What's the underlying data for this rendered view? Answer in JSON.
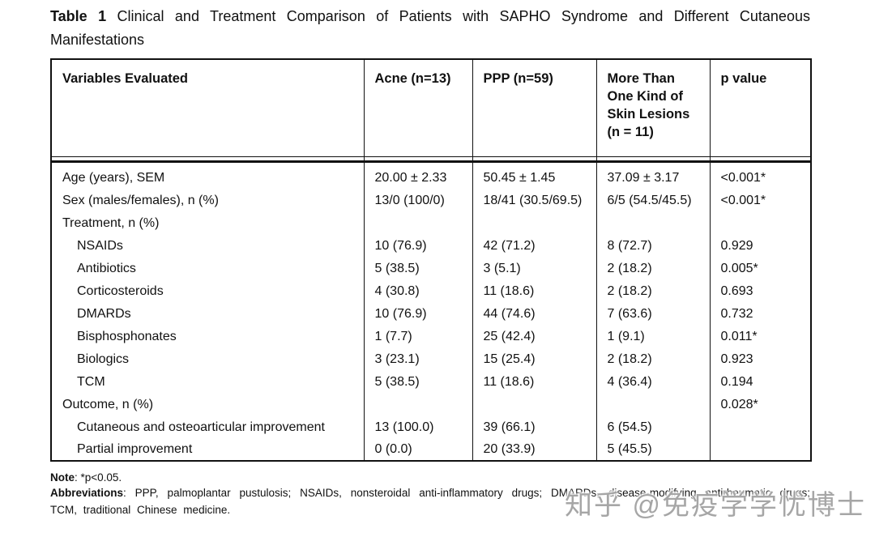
{
  "page": {
    "title_label": "Table 1",
    "title_text": "Clinical and Treatment Comparison of Patients with SAPHO Syndrome and Different Cutaneous Manifestations"
  },
  "table": {
    "columns": [
      "Variables Evaluated",
      "Acne (n=13)",
      "PPP (n=59)",
      "More Than One Kind of Skin Lesions (n = 11)",
      "p value"
    ],
    "rows": [
      {
        "label": "Age (years), SEM",
        "indent": false,
        "values": [
          "20.00 ± 2.33",
          "50.45 ± 1.45",
          "37.09 ± 3.17",
          "<0.001*"
        ]
      },
      {
        "label": "Sex (males/females), n (%)",
        "indent": false,
        "values": [
          "13/0 (100/0)",
          "18/41 (30.5/69.5)",
          "6/5 (54.5/45.5)",
          "<0.001*"
        ]
      },
      {
        "label": "Treatment, n (%)",
        "indent": false,
        "values": [
          "",
          "",
          "",
          ""
        ]
      },
      {
        "label": "NSAIDs",
        "indent": true,
        "values": [
          "10 (76.9)",
          "42 (71.2)",
          "8 (72.7)",
          "0.929"
        ]
      },
      {
        "label": "Antibiotics",
        "indent": true,
        "values": [
          "5 (38.5)",
          "3 (5.1)",
          "2 (18.2)",
          "0.005*"
        ]
      },
      {
        "label": "Corticosteroids",
        "indent": true,
        "values": [
          "4 (30.8)",
          "11 (18.6)",
          "2 (18.2)",
          "0.693"
        ]
      },
      {
        "label": "DMARDs",
        "indent": true,
        "values": [
          "10 (76.9)",
          "44 (74.6)",
          "7 (63.6)",
          "0.732"
        ]
      },
      {
        "label": "Bisphosphonates",
        "indent": true,
        "values": [
          "1 (7.7)",
          "25 (42.4)",
          "1 (9.1)",
          "0.011*"
        ]
      },
      {
        "label": "Biologics",
        "indent": true,
        "values": [
          "3 (23.1)",
          "15 (25.4)",
          "2 (18.2)",
          "0.923"
        ]
      },
      {
        "label": "TCM",
        "indent": true,
        "values": [
          "5 (38.5)",
          "11 (18.6)",
          "4 (36.4)",
          "0.194"
        ]
      },
      {
        "label": "Outcome, n (%)",
        "indent": false,
        "values": [
          "",
          "",
          "",
          "0.028*"
        ]
      },
      {
        "label": "Cutaneous and osteoarticular improvement",
        "indent": true,
        "values": [
          "13 (100.0)",
          "39 (66.1)",
          "6 (54.5)",
          ""
        ]
      },
      {
        "label": "Partial improvement",
        "indent": true,
        "values": [
          "0 (0.0)",
          "20 (33.9)",
          "5 (45.5)",
          ""
        ]
      }
    ]
  },
  "notes": {
    "note_label": "Note",
    "note_text": ": *p<0.05.",
    "abbr_label": "Abbreviations",
    "abbr_text": ": PPP, palmoplantar pustulosis; NSAIDs, nonsteroidal anti-inflammatory drugs; DMARDs, disease-modifying antirheumatic drugs; TCM, traditional Chinese medicine."
  },
  "watermark": {
    "text": "知乎 @免疫学学忧博士"
  }
}
